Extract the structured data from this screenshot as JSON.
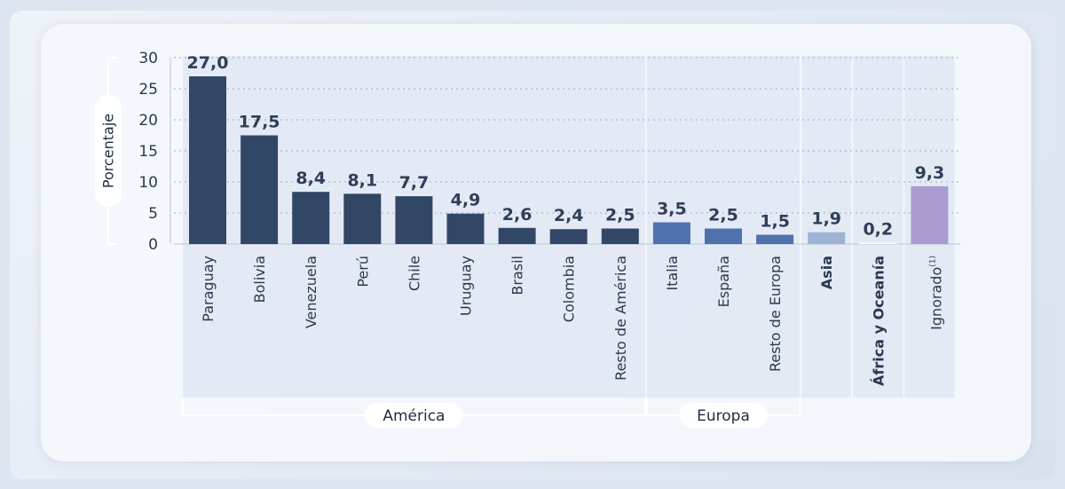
{
  "chart_data": {
    "type": "bar",
    "ylabel": "Porcentaje",
    "ylim": [
      0,
      30
    ],
    "yticks": [
      "0",
      "5",
      "10",
      "15",
      "20",
      "25",
      "30"
    ],
    "grid": true,
    "categories": [
      "Paraguay",
      "Bolivia",
      "Venezuela",
      "Perú",
      "Chile",
      "Uruguay",
      "Brasil",
      "Colombia",
      "Resto de América",
      "Italia",
      "España",
      "Resto de Europa",
      "Asia",
      "África y Oceanía",
      "Ignorado"
    ],
    "category_superscripts": {
      "Ignorado": "(1)"
    },
    "values": [
      27.0,
      17.5,
      8.4,
      8.1,
      7.7,
      4.9,
      2.6,
      2.4,
      2.5,
      3.5,
      2.5,
      1.5,
      1.9,
      0.2,
      9.3
    ],
    "value_labels": [
      "27,0",
      "17,5",
      "8,4",
      "8,1",
      "7,7",
      "4,9",
      "2,6",
      "2,4",
      "2,5",
      "3,5",
      "2,5",
      "1,5",
      "1,9",
      "0,2",
      "9,3"
    ],
    "groups": [
      {
        "label": "América",
        "from": 0,
        "to": 8
      },
      {
        "label": "Europa",
        "from": 9,
        "to": 11
      }
    ],
    "colors": {
      "america": "#324666",
      "europa": "#4f72ad",
      "asia": "#9db3d6",
      "africa_oceania": "#ffffff",
      "ignorado": "#a99bd2"
    },
    "bar_color_keys": [
      "america",
      "america",
      "america",
      "america",
      "america",
      "america",
      "america",
      "america",
      "america",
      "europa",
      "europa",
      "europa",
      "asia",
      "africa_oceania",
      "ignorado"
    ]
  }
}
